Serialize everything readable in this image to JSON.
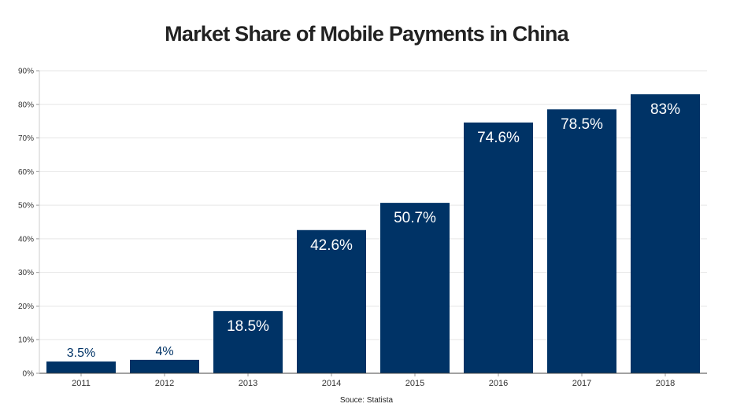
{
  "chart_data": {
    "type": "bar",
    "title": "Market Share of Mobile Payments in China",
    "source": "Souce: Statista",
    "categories": [
      "2011",
      "2012",
      "2013",
      "2014",
      "2015",
      "2016",
      "2017",
      "2018"
    ],
    "values": [
      3.5,
      4,
      18.5,
      42.6,
      50.7,
      74.6,
      78.5,
      83
    ],
    "data_labels": [
      "3.5%",
      "4%",
      "18.5%",
      "42.6%",
      "50.7%",
      "74.6%",
      "78.5%",
      "83%"
    ],
    "y_ticks": [
      0,
      10,
      20,
      30,
      40,
      50,
      60,
      70,
      80,
      90
    ],
    "y_tick_labels": [
      "0%",
      "10%",
      "20%",
      "30%",
      "40%",
      "50%",
      "60%",
      "70%",
      "80%",
      "90%"
    ],
    "ylim": [
      0,
      90
    ],
    "xlabel": "",
    "ylabel": "",
    "grid": true,
    "bar_color": "#003366",
    "label_inside_color": "#ffffff",
    "label_outside_color": "#003366"
  }
}
